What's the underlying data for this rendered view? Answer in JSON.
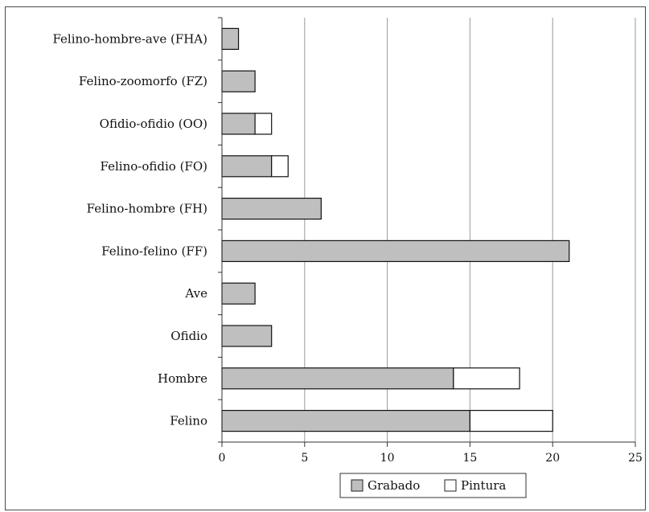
{
  "chart_data": {
    "type": "bar",
    "orientation": "horizontal",
    "stacked": true,
    "categories": [
      "Felino-hombre-ave (FHA)",
      "Felino-zoomorfo (FZ)",
      "Ofidio-ofidio (OO)",
      "Felino-ofidio (FO)",
      "Felino-hombre (FH)",
      "Felino-felino (FF)",
      "Ave",
      "Ofidio",
      "Hombre",
      "Felino"
    ],
    "series": [
      {
        "name": "Grabado",
        "color": "#bfbfbf",
        "values": [
          1,
          2,
          2,
          3,
          6,
          21,
          2,
          3,
          14,
          15
        ]
      },
      {
        "name": "Pintura",
        "color": "#ffffff",
        "values": [
          0,
          0,
          1,
          1,
          0,
          0,
          0,
          0,
          4,
          5
        ]
      }
    ],
    "xlim": [
      0,
      25
    ],
    "xticks": [
      "0",
      "5",
      "10",
      "15",
      "20",
      "25"
    ],
    "title": "",
    "xlabel": "",
    "ylabel": "",
    "grid": "vertical",
    "legend_position": "bottom-center"
  }
}
